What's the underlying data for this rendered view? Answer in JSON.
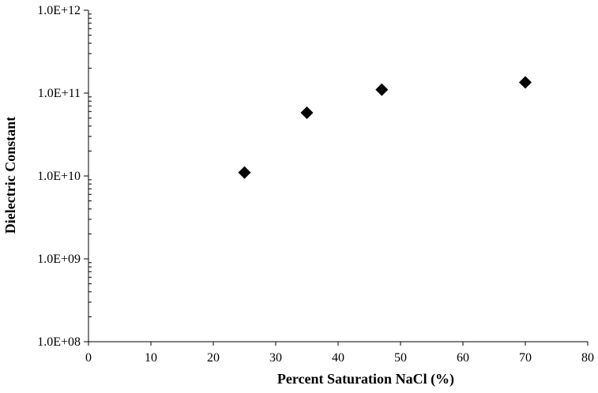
{
  "chart_data": {
    "type": "scatter",
    "title": "",
    "xlabel": "Percent Saturation NaCl (%)",
    "ylabel": "Dielectric Constant",
    "xlim": [
      0,
      80
    ],
    "ylim": [
      100000000,
      1000000000000
    ],
    "yscale": "log",
    "x_ticks": [
      0,
      10,
      20,
      30,
      40,
      50,
      60,
      70,
      80
    ],
    "x_tick_labels": [
      "0",
      "10",
      "20",
      "30",
      "40",
      "50",
      "60",
      "70",
      "80"
    ],
    "y_ticks": [
      100000000,
      1000000000,
      10000000000,
      100000000000,
      1000000000000
    ],
    "y_tick_labels": [
      "1.0E+08",
      "1.0E+09",
      "1.0E+10",
      "1.0E+11",
      "1.0E+12"
    ],
    "grid": false,
    "legend": "none",
    "marker": "diamond",
    "marker_color": "#000000",
    "series": [
      {
        "x": [
          25,
          35,
          47,
          70
        ],
        "y": [
          11000000000,
          58000000000,
          110000000000,
          135000000000
        ]
      }
    ]
  }
}
